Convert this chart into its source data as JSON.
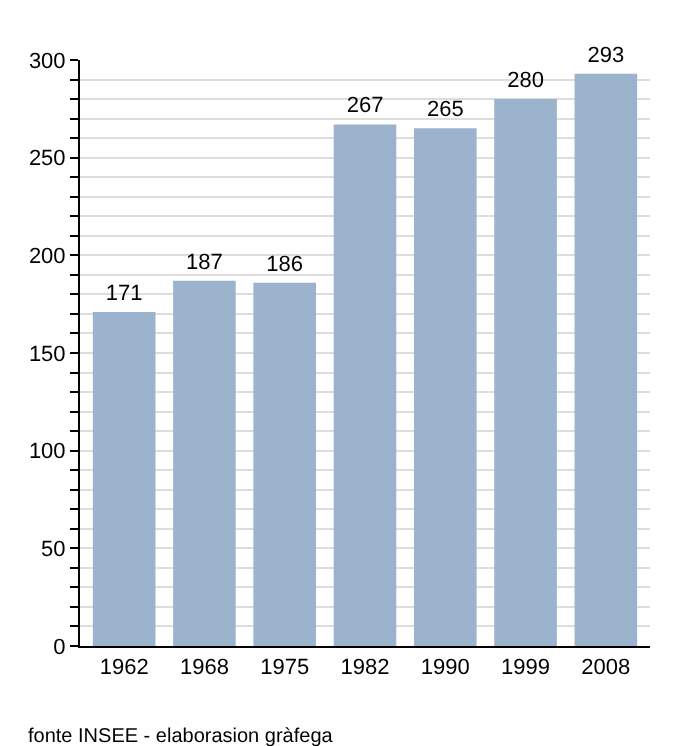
{
  "chart_data": {
    "type": "bar",
    "categories": [
      "1962",
      "1968",
      "1975",
      "1982",
      "1990",
      "1999",
      "2008"
    ],
    "values": [
      171,
      187,
      186,
      267,
      265,
      280,
      293
    ],
    "color": "#9bb3cc",
    "data_labels": true,
    "ylim": [
      0,
      300
    ],
    "yticks": [
      0,
      {
        "value": 10,
        "label": null
      },
      {
        "value": 20,
        "label": null
      },
      {
        "value": 30,
        "label": null
      },
      {
        "value": 40,
        "label": null
      },
      50,
      {
        "value": 60,
        "label": null
      },
      {
        "value": 70,
        "label": null
      },
      {
        "value": 80,
        "label": null
      },
      {
        "value": 90,
        "label": null
      },
      100,
      {
        "value": 110,
        "label": null
      },
      {
        "value": 120,
        "label": null
      },
      {
        "value": 130,
        "label": null
      },
      {
        "value": 140,
        "label": null
      },
      150,
      {
        "value": 160,
        "label": null
      },
      {
        "value": 170,
        "label": null
      },
      {
        "value": 180,
        "label": null
      },
      {
        "value": 190,
        "label": null
      },
      200,
      {
        "value": 210,
        "label": null
      },
      {
        "value": 220,
        "label": null
      },
      {
        "value": 230,
        "label": null
      },
      {
        "value": 240,
        "label": null
      },
      250,
      {
        "value": 260,
        "label": null
      },
      {
        "value": 270,
        "label": null
      },
      {
        "value": 280,
        "label": null
      },
      {
        "value": 290,
        "label": null
      },
      300
    ],
    "grid": "y",
    "annotations": [
      "fonte INSEE - elaborasion gràfega"
    ]
  }
}
